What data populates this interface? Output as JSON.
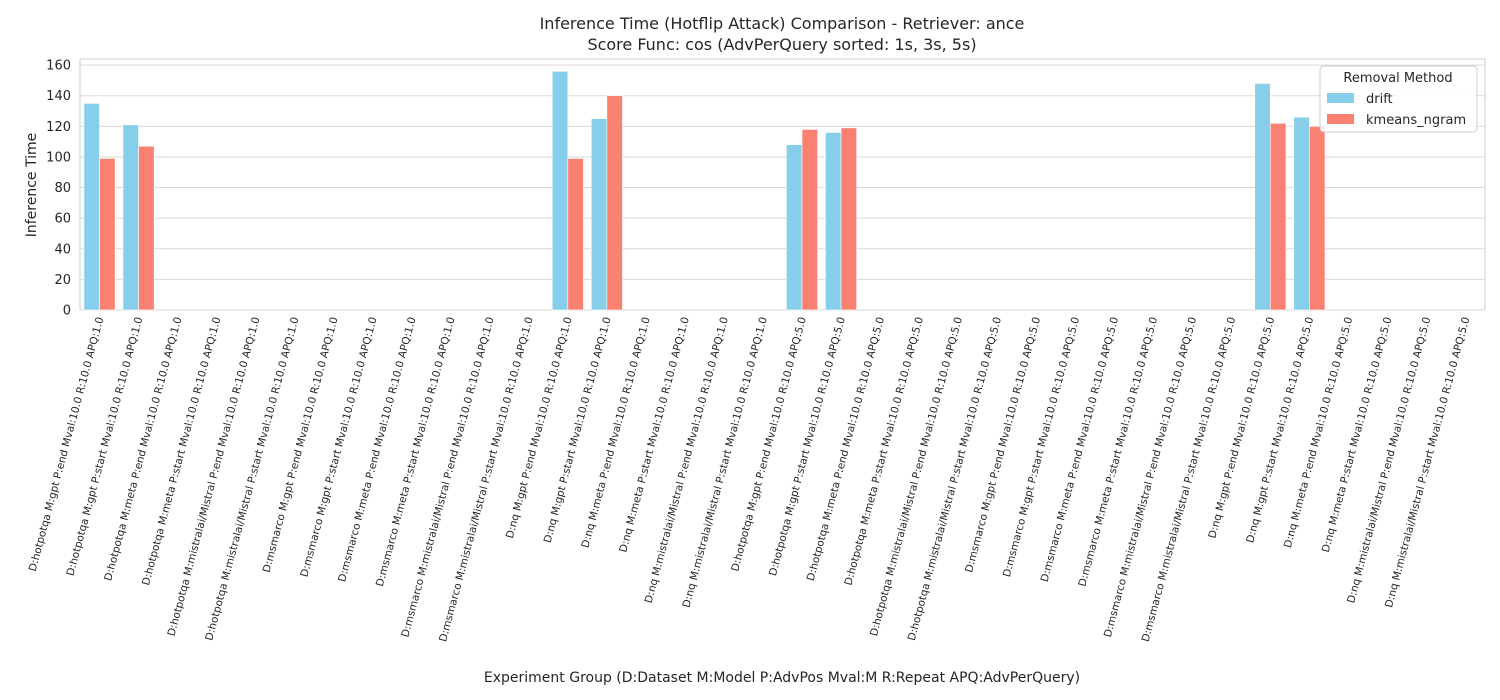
{
  "chart_data": {
    "type": "bar",
    "title": "Inference Time (Hotflip Attack) Comparison - Retriever: ance",
    "subtitle": "Score Func: cos (AdvPerQuery sorted: 1s, 3s, 5s)",
    "xlabel": "Experiment Group (D:Dataset M:Model P:AdvPos Mval:M R:Repeat APQ:AdvPerQuery)",
    "ylabel": "Inference Time",
    "ylim": [
      0,
      164
    ],
    "yticks": [
      0,
      20,
      40,
      60,
      80,
      100,
      120,
      140,
      160
    ],
    "grid": true,
    "legend": {
      "title": "Removal Method",
      "placement": "top-right"
    },
    "categories": [
      "D:hotpotqa M:gpt P:end Mval:10.0 R:10.0 APQ:1.0",
      "D:hotpotqa M:gpt P:start Mval:10.0 R:10.0 APQ:1.0",
      "D:hotpotqa M:meta P:end Mval:10.0 R:10.0 APQ:1.0",
      "D:hotpotqa M:meta P:start Mval:10.0 R:10.0 APQ:1.0",
      "D:hotpotqa M:mistralai/Mistral P:end Mval:10.0 R:10.0 APQ:1.0",
      "D:hotpotqa M:mistralai/Mistral P:start Mval:10.0 R:10.0 APQ:1.0",
      "D:msmarco M:gpt P:end Mval:10.0 R:10.0 APQ:1.0",
      "D:msmarco M:gpt P:start Mval:10.0 R:10.0 APQ:1.0",
      "D:msmarco M:meta P:end Mval:10.0 R:10.0 APQ:1.0",
      "D:msmarco M:meta P:start Mval:10.0 R:10.0 APQ:1.0",
      "D:msmarco M:mistralai/Mistral P:end Mval:10.0 R:10.0 APQ:1.0",
      "D:msmarco M:mistralai/Mistral P:start Mval:10.0 R:10.0 APQ:1.0",
      "D:nq M:gpt P:end Mval:10.0 R:10.0 APQ:1.0",
      "D:nq M:gpt P:start Mval:10.0 R:10.0 APQ:1.0",
      "D:nq M:meta P:end Mval:10.0 R:10.0 APQ:1.0",
      "D:nq M:meta P:start Mval:10.0 R:10.0 APQ:1.0",
      "D:nq M:mistralai/Mistral P:end Mval:10.0 R:10.0 APQ:1.0",
      "D:nq M:mistralai/Mistral P:start Mval:10.0 R:10.0 APQ:1.0",
      "D:hotpotqa M:gpt P:end Mval:10.0 R:10.0 APQ:5.0",
      "D:hotpotqa M:gpt P:start Mval:10.0 R:10.0 APQ:5.0",
      "D:hotpotqa M:meta P:end Mval:10.0 R:10.0 APQ:5.0",
      "D:hotpotqa M:meta P:start Mval:10.0 R:10.0 APQ:5.0",
      "D:hotpotqa M:mistralai/Mistral P:end Mval:10.0 R:10.0 APQ:5.0",
      "D:hotpotqa M:mistralai/Mistral P:start Mval:10.0 R:10.0 APQ:5.0",
      "D:msmarco M:gpt P:end Mval:10.0 R:10.0 APQ:5.0",
      "D:msmarco M:gpt P:start Mval:10.0 R:10.0 APQ:5.0",
      "D:msmarco M:meta P:end Mval:10.0 R:10.0 APQ:5.0",
      "D:msmarco M:meta P:start Mval:10.0 R:10.0 APQ:5.0",
      "D:msmarco M:mistralai/Mistral P:end Mval:10.0 R:10.0 APQ:5.0",
      "D:msmarco M:mistralai/Mistral P:start Mval:10.0 R:10.0 APQ:5.0",
      "D:nq M:gpt P:end Mval:10.0 R:10.0 APQ:5.0",
      "D:nq M:gpt P:start Mval:10.0 R:10.0 APQ:5.0",
      "D:nq M:meta P:end Mval:10.0 R:10.0 APQ:5.0",
      "D:nq M:meta P:start Mval:10.0 R:10.0 APQ:5.0",
      "D:nq M:mistralai/Mistral P:end Mval:10.0 R:10.0 APQ:5.0",
      "D:nq M:mistralai/Mistral P:start Mval:10.0 R:10.0 APQ:5.0"
    ],
    "series": [
      {
        "name": "drift",
        "color": "#87ceeb",
        "values": [
          135,
          121,
          null,
          null,
          null,
          null,
          null,
          null,
          null,
          null,
          null,
          null,
          156,
          125,
          null,
          null,
          null,
          null,
          108,
          116,
          null,
          null,
          null,
          null,
          null,
          null,
          null,
          null,
          null,
          null,
          148,
          126,
          null,
          null,
          null,
          null
        ]
      },
      {
        "name": "kmeans_ngram",
        "color": "#fa8072",
        "values": [
          99,
          107,
          null,
          null,
          null,
          null,
          null,
          null,
          null,
          null,
          null,
          null,
          99,
          140,
          null,
          null,
          null,
          null,
          118,
          119,
          null,
          null,
          null,
          null,
          null,
          null,
          null,
          null,
          null,
          null,
          122,
          120,
          null,
          null,
          null,
          null
        ]
      }
    ]
  }
}
